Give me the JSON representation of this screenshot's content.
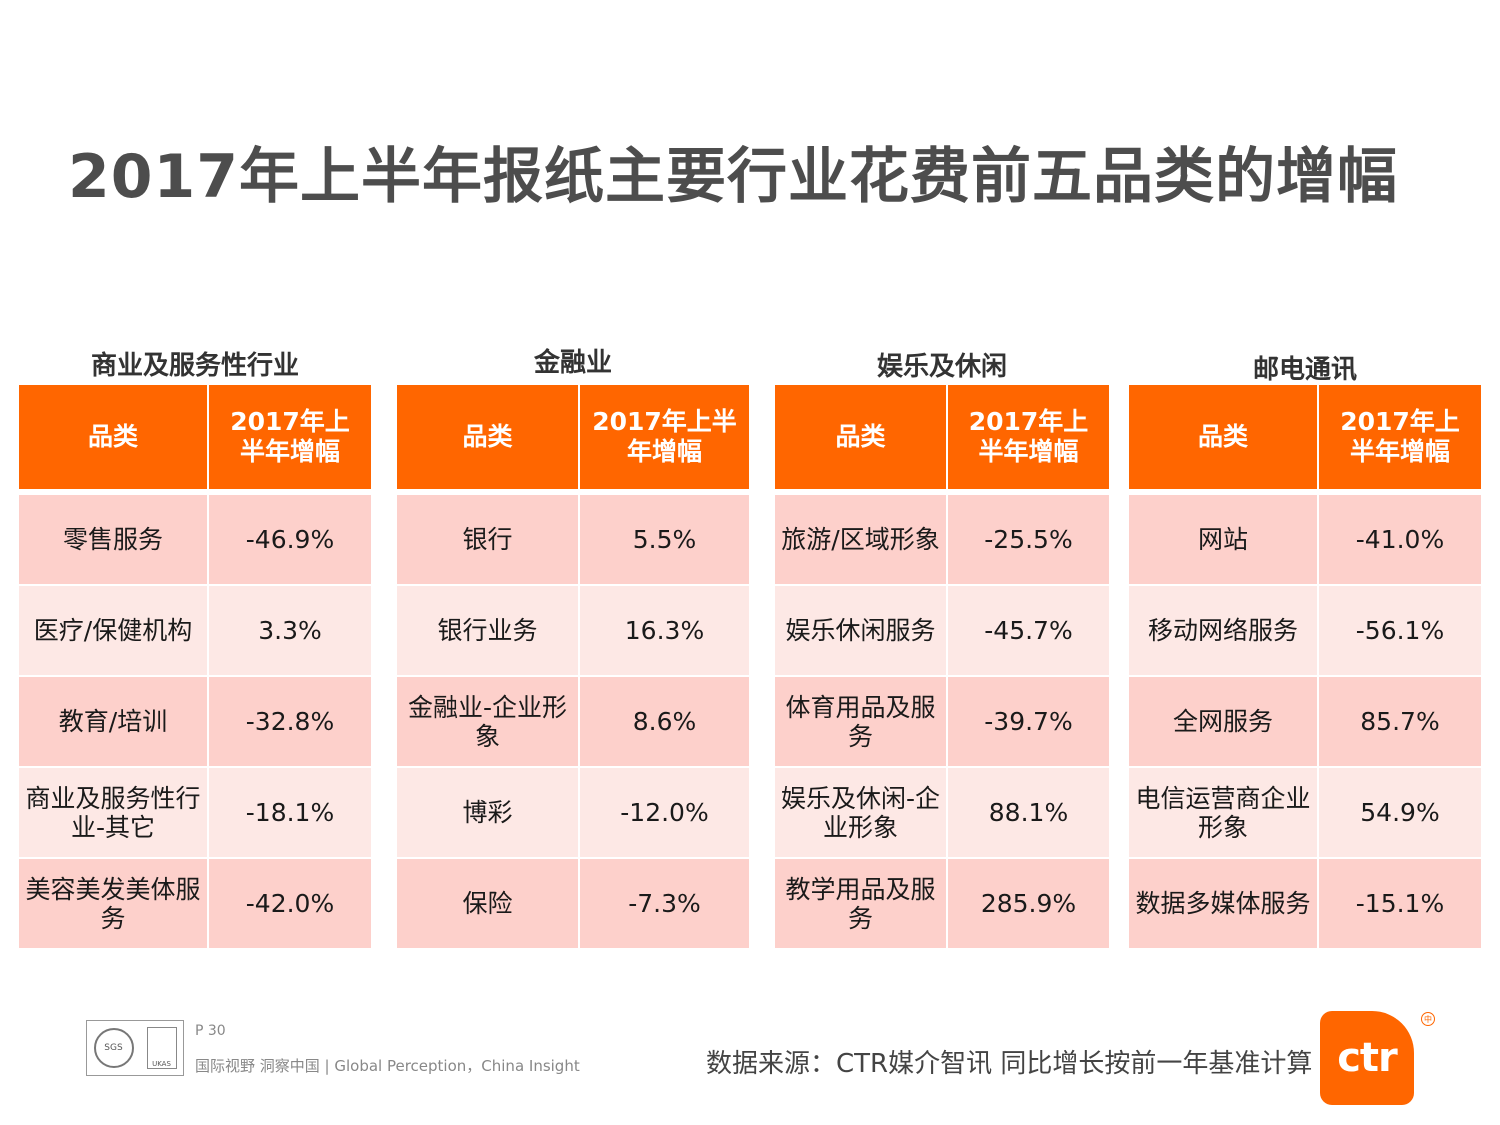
{
  "title": "2017年上半年报纸主要行业花费前五品类的增幅",
  "headers": {
    "category": "品类",
    "growth": "2017年上半年增幅"
  },
  "sections": [
    {
      "name": "商业及服务性行业",
      "rows": [
        {
          "category": "零售服务",
          "growth": "-46.9%"
        },
        {
          "category": "医疗/保健机构",
          "growth": "3.3%"
        },
        {
          "category": "教育/培训",
          "growth": "-32.8%"
        },
        {
          "category": "商业及服务性行业-其它",
          "growth": "-18.1%"
        },
        {
          "category": "美容美发美体服务",
          "growth": "-42.0%"
        }
      ]
    },
    {
      "name": "金融业",
      "rows": [
        {
          "category": "银行",
          "growth": "5.5%"
        },
        {
          "category": "银行业务",
          "growth": "16.3%"
        },
        {
          "category": "金融业-企业形象",
          "growth": "8.6%"
        },
        {
          "category": "博彩",
          "growth": "-12.0%"
        },
        {
          "category": "保险",
          "growth": "-7.3%"
        }
      ]
    },
    {
      "name": "娱乐及休闲",
      "rows": [
        {
          "category": "旅游/区域形象",
          "growth": "-25.5%"
        },
        {
          "category": "娱乐休闲服务",
          "growth": "-45.7%"
        },
        {
          "category": "体育用品及服务",
          "growth": "-39.7%"
        },
        {
          "category": "娱乐及休闲-企业形象",
          "growth": "88.1%"
        },
        {
          "category": "教学用品及服务",
          "growth": "285.9%"
        }
      ]
    },
    {
      "name": "邮电通讯",
      "rows": [
        {
          "category": "网站",
          "growth": "-41.0%"
        },
        {
          "category": "移动网络服务",
          "growth": "-56.1%"
        },
        {
          "category": "全网服务",
          "growth": "85.7%"
        },
        {
          "category": "电信运营商企业形象",
          "growth": "54.9%"
        },
        {
          "category": "数据多媒体服务",
          "growth": "-15.1%"
        }
      ]
    }
  ],
  "footer": {
    "page": "P 30",
    "tagline": "国际视野  洞察中国 | Global Perception，China Insight",
    "source": "数据来源：CTR媒介智讯    同比增长按前一年基准计算",
    "logo_text": "ctr",
    "logo_mark": "中",
    "cert_left": "SGS",
    "cert_right": "UKAS"
  },
  "colors": {
    "header_bg": "#ff6600",
    "row_dark": "#fdd0cb",
    "row_light": "#fde8e5",
    "title": "#4d4d4d"
  }
}
